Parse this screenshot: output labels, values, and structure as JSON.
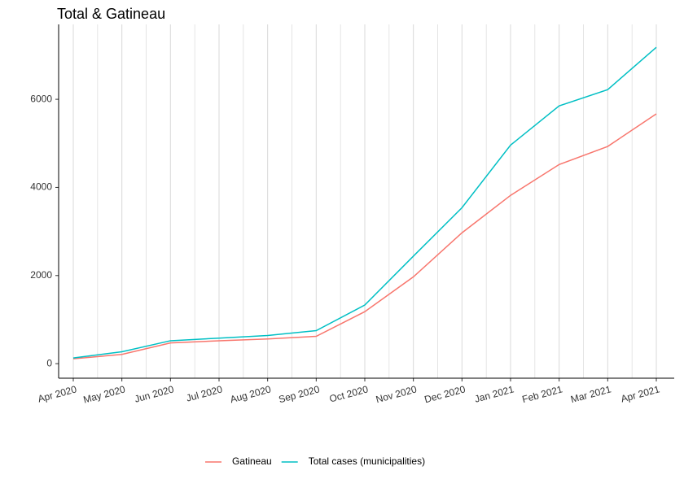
{
  "chart_data": {
    "type": "line",
    "title": "Total & Gatineau",
    "x": [
      "Apr 2020",
      "May 2020",
      "Jun 2020",
      "Jul 2020",
      "Aug 2020",
      "Sep 2020",
      "Oct 2020",
      "Nov 2020",
      "Dec 2020",
      "Jan 2021",
      "Feb 2021",
      "Mar 2021",
      "Apr 2021"
    ],
    "series": [
      {
        "name": "Gatineau",
        "color": "#F8766D",
        "values": [
          110,
          210,
          470,
          520,
          560,
          620,
          1180,
          1970,
          2970,
          3820,
          4520,
          4930,
          5670
        ]
      },
      {
        "name": "Total cases (municipalities)",
        "color": "#00BFC4",
        "values": [
          130,
          270,
          520,
          580,
          640,
          750,
          1330,
          2440,
          3540,
          4960,
          5850,
          6220,
          7180
        ]
      }
    ],
    "ylim": [
      -330,
      7700
    ],
    "yticks": [
      0,
      2000,
      4000,
      6000
    ],
    "grid": true,
    "legend": "bottom"
  }
}
